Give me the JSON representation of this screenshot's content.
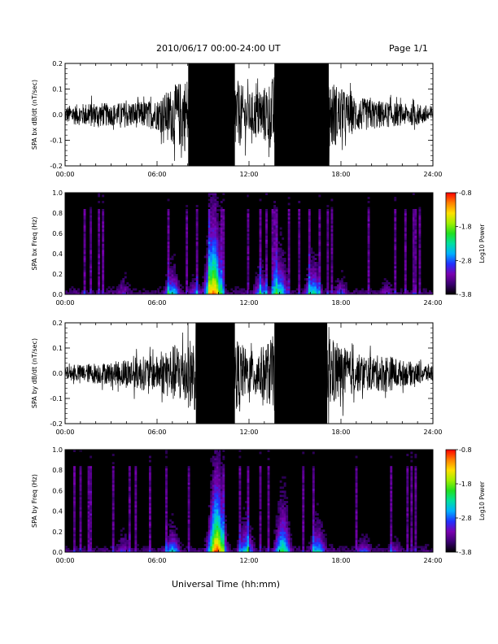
{
  "header": {
    "date_range": "2010/06/17  00:00-24:00 UT",
    "page": "Page 1/1"
  },
  "footer": {
    "x_title": "Universal Time (hh:mm)"
  },
  "time_ticks": [
    "00:00",
    "06:00",
    "12:00",
    "18:00",
    "24:00"
  ],
  "colors": {
    "trace": "#000000",
    "colormap": [
      "#000000",
      "#3a0070",
      "#7a00b0",
      "#2030ff",
      "#00b0ff",
      "#00e0a0",
      "#20e020",
      "#a0f000",
      "#ffe000",
      "#ff8000",
      "#ff0000"
    ]
  },
  "chart_data": [
    {
      "id": "bx-timeseries",
      "type": "line",
      "ylabel": "SPA bx dB/dt (nT/sec)",
      "xlim": [
        0,
        24
      ],
      "ylim": [
        -0.2,
        0.2
      ],
      "y_ticks": [
        -0.2,
        -0.1,
        0.0,
        0.1,
        0.2
      ],
      "y_tick_labels": [
        "-0.2",
        "-0.1",
        "0.0",
        "0.1",
        "0.2"
      ],
      "series": [
        {
          "x": [
            0,
            1,
            2,
            3,
            4,
            5,
            6,
            7,
            8,
            9,
            10,
            11,
            12,
            13,
            14,
            15,
            16,
            17,
            18,
            19,
            20,
            21,
            22,
            23,
            24
          ],
          "values": [
            0.04,
            0.05,
            0.06,
            0.05,
            0.06,
            0.06,
            0.07,
            0.13,
            0.18,
            0.21,
            0.21,
            0.18,
            0.1,
            0.13,
            0.21,
            0.21,
            0.21,
            0.19,
            0.12,
            0.08,
            0.07,
            0.06,
            0.05,
            0.05,
            0.04
          ]
        }
      ]
    },
    {
      "id": "bx-spectrogram",
      "type": "heatmap",
      "ylabel": "SPA bx Freq (Hz)",
      "xlim": [
        0,
        24
      ],
      "ylim": [
        0.0,
        1.0
      ],
      "y_ticks": [
        0.0,
        0.2,
        0.4,
        0.6,
        0.8,
        1.0
      ],
      "y_tick_labels": [
        "0.0",
        "0.2",
        "0.4",
        "0.6",
        "0.8",
        "1.0"
      ],
      "colorbar": {
        "label": "Log10 Power",
        "range": [
          -3.8,
          -0.8
        ],
        "ticks": [
          -3.8,
          -2.8,
          -1.8,
          -0.8
        ],
        "tick_labels": [
          "-3.8",
          "-2.8",
          "-1.8",
          "-0.8"
        ]
      },
      "activity": [
        {
          "t": 3.8,
          "level": 0.25,
          "height": 0.12
        },
        {
          "t": 7.0,
          "level": 0.55,
          "height": 0.15
        },
        {
          "t": 8.5,
          "level": 0.35,
          "height": 0.1
        },
        {
          "t": 9.7,
          "level": 0.95,
          "height": 0.45
        },
        {
          "t": 12.8,
          "level": 0.45,
          "height": 0.15
        },
        {
          "t": 14.0,
          "level": 0.55,
          "height": 0.25
        },
        {
          "t": 16.2,
          "level": 0.55,
          "height": 0.2
        },
        {
          "t": 18.0,
          "level": 0.35,
          "height": 0.1
        },
        {
          "t": 21.0,
          "level": 0.3,
          "height": 0.08
        }
      ]
    },
    {
      "id": "by-timeseries",
      "type": "line",
      "ylabel": "SPA by dB/dt (nT/sec)",
      "xlim": [
        0,
        24
      ],
      "ylim": [
        -0.2,
        0.2
      ],
      "y_ticks": [
        -0.2,
        -0.1,
        0.0,
        0.1,
        0.2
      ],
      "y_tick_labels": [
        "-0.2",
        "-0.1",
        "0.0",
        "0.1",
        "0.2"
      ],
      "series": [
        {
          "x": [
            0,
            1,
            2,
            3,
            4,
            5,
            6,
            7,
            8,
            9,
            10,
            11,
            12,
            13,
            14,
            15,
            16,
            17,
            18,
            19,
            20,
            21,
            22,
            23,
            24
          ],
          "values": [
            0.03,
            0.04,
            0.05,
            0.05,
            0.07,
            0.08,
            0.08,
            0.13,
            0.16,
            0.2,
            0.21,
            0.18,
            0.1,
            0.13,
            0.21,
            0.21,
            0.2,
            0.18,
            0.13,
            0.09,
            0.08,
            0.09,
            0.06,
            0.05,
            0.04
          ]
        }
      ]
    },
    {
      "id": "by-spectrogram",
      "type": "heatmap",
      "ylabel": "SPA by Freq (Hz)",
      "xlim": [
        0,
        24
      ],
      "ylim": [
        0.0,
        1.0
      ],
      "y_ticks": [
        0.0,
        0.2,
        0.4,
        0.6,
        0.8,
        1.0
      ],
      "y_tick_labels": [
        "0.0",
        "0.2",
        "0.4",
        "0.6",
        "0.8",
        "1.0"
      ],
      "colorbar": {
        "label": "Log10 Power",
        "range": [
          -3.8,
          -0.8
        ],
        "ticks": [
          -3.8,
          -2.8,
          -1.8,
          -0.8
        ],
        "tick_labels": [
          "-3.8",
          "-2.8",
          "-1.8",
          "-0.8"
        ]
      },
      "activity": [
        {
          "t": 3.8,
          "level": 0.3,
          "height": 0.12
        },
        {
          "t": 7.0,
          "level": 0.5,
          "height": 0.14
        },
        {
          "t": 9.9,
          "level": 0.98,
          "height": 0.45
        },
        {
          "t": 11.8,
          "level": 0.5,
          "height": 0.18
        },
        {
          "t": 14.2,
          "level": 0.6,
          "height": 0.28
        },
        {
          "t": 16.5,
          "level": 0.5,
          "height": 0.18
        },
        {
          "t": 19.5,
          "level": 0.35,
          "height": 0.1
        },
        {
          "t": 21.5,
          "level": 0.3,
          "height": 0.08
        }
      ]
    }
  ]
}
